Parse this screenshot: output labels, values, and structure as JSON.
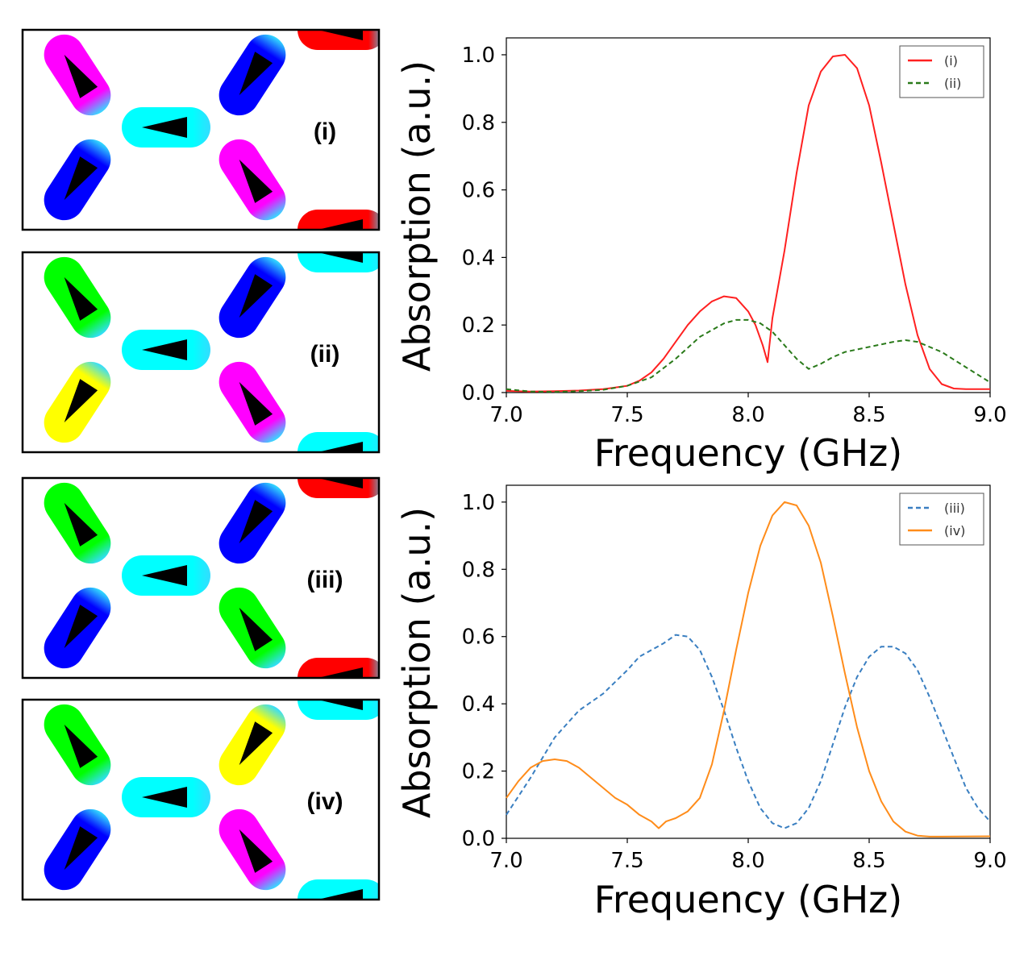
{
  "panels": [
    {
      "label": "(i)",
      "colors": [
        "#ff00ff",
        "#0000ff",
        "#00ffff",
        "#0000ff",
        "#ff00ff",
        "#ff0000",
        "#ff0000"
      ]
    },
    {
      "label": "(ii)",
      "colors": [
        "#00ff00",
        "#ffff00",
        "#00ffff",
        "#0000ff",
        "#ff00ff",
        "#00ffff",
        "#00ffff"
      ]
    },
    {
      "label": "(iii)",
      "colors": [
        "#00ff00",
        "#0000ff",
        "#00ffff",
        "#0000ff",
        "#00ff00",
        "#ff0000",
        "#ff0000"
      ]
    },
    {
      "label": "(iv)",
      "colors": [
        "#00ff00",
        "#0000ff",
        "#00ffff",
        "#ffff00",
        "#ff00ff",
        "#00ffff",
        "#00ffff"
      ]
    }
  ],
  "chart_data": [
    {
      "type": "line",
      "xlabel": "Frequency (GHz)",
      "ylabel": "Absorption (a.u.)",
      "xlim": [
        7.0,
        9.0
      ],
      "ylim": [
        0.0,
        1.05
      ],
      "xticks": [
        "7.0",
        "7.5",
        "8.0",
        "8.5",
        "9.0"
      ],
      "yticks": [
        "0.0",
        "0.2",
        "0.4",
        "0.6",
        "0.8",
        "1.0"
      ],
      "legend_position": "top-right",
      "series": [
        {
          "name": "(i)",
          "color": "#ff2020",
          "dash": "solid",
          "x": [
            7.0,
            7.1,
            7.2,
            7.3,
            7.4,
            7.5,
            7.55,
            7.6,
            7.65,
            7.7,
            7.75,
            7.8,
            7.85,
            7.9,
            7.95,
            8.0,
            8.03,
            8.06,
            8.08,
            8.1,
            8.15,
            8.2,
            8.25,
            8.3,
            8.35,
            8.4,
            8.45,
            8.5,
            8.55,
            8.6,
            8.65,
            8.7,
            8.75,
            8.8,
            8.85,
            8.9,
            9.0
          ],
          "y": [
            0.005,
            0.003,
            0.004,
            0.006,
            0.01,
            0.02,
            0.035,
            0.06,
            0.1,
            0.15,
            0.2,
            0.24,
            0.27,
            0.285,
            0.28,
            0.24,
            0.2,
            0.14,
            0.09,
            0.22,
            0.42,
            0.65,
            0.85,
            0.95,
            0.995,
            1.0,
            0.96,
            0.85,
            0.68,
            0.5,
            0.32,
            0.17,
            0.07,
            0.025,
            0.012,
            0.01,
            0.01
          ]
        },
        {
          "name": "(ii)",
          "color": "#2a7a1a",
          "dash": "dashed",
          "x": [
            7.0,
            7.1,
            7.2,
            7.3,
            7.4,
            7.5,
            7.6,
            7.7,
            7.8,
            7.9,
            7.95,
            8.0,
            8.05,
            8.1,
            8.15,
            8.2,
            8.25,
            8.3,
            8.35,
            8.4,
            8.5,
            8.6,
            8.65,
            8.7,
            8.8,
            8.9,
            9.0
          ],
          "y": [
            0.01,
            0.003,
            0.002,
            0.004,
            0.008,
            0.02,
            0.045,
            0.1,
            0.165,
            0.205,
            0.215,
            0.215,
            0.205,
            0.18,
            0.14,
            0.1,
            0.07,
            0.085,
            0.105,
            0.12,
            0.135,
            0.15,
            0.155,
            0.15,
            0.12,
            0.075,
            0.03
          ]
        }
      ]
    },
    {
      "type": "line",
      "xlabel": "Frequency (GHz)",
      "ylabel": "Absorption (a.u.)",
      "xlim": [
        7.0,
        9.0
      ],
      "ylim": [
        0.0,
        1.05
      ],
      "xticks": [
        "7.0",
        "7.5",
        "8.0",
        "8.5",
        "9.0"
      ],
      "yticks": [
        "0.0",
        "0.2",
        "0.4",
        "0.6",
        "0.8",
        "1.0"
      ],
      "legend_position": "top-right",
      "series": [
        {
          "name": "(iii)",
          "color": "#3a7fc1",
          "dash": "dashed",
          "x": [
            7.0,
            7.1,
            7.2,
            7.3,
            7.4,
            7.5,
            7.55,
            7.6,
            7.65,
            7.7,
            7.75,
            7.8,
            7.85,
            7.9,
            7.95,
            8.0,
            8.05,
            8.1,
            8.15,
            8.2,
            8.25,
            8.3,
            8.35,
            8.4,
            8.45,
            8.5,
            8.55,
            8.6,
            8.65,
            8.7,
            8.75,
            8.8,
            8.85,
            8.9,
            8.95,
            9.0
          ],
          "y": [
            0.07,
            0.18,
            0.3,
            0.38,
            0.43,
            0.5,
            0.54,
            0.56,
            0.58,
            0.605,
            0.6,
            0.56,
            0.48,
            0.38,
            0.27,
            0.17,
            0.09,
            0.045,
            0.03,
            0.045,
            0.09,
            0.17,
            0.28,
            0.39,
            0.48,
            0.54,
            0.57,
            0.57,
            0.55,
            0.5,
            0.42,
            0.33,
            0.24,
            0.15,
            0.09,
            0.05
          ]
        },
        {
          "name": "(iv)",
          "color": "#ff8c1a",
          "dash": "solid",
          "x": [
            7.0,
            7.05,
            7.1,
            7.15,
            7.2,
            7.25,
            7.3,
            7.35,
            7.4,
            7.45,
            7.5,
            7.55,
            7.6,
            7.63,
            7.66,
            7.7,
            7.75,
            7.8,
            7.85,
            7.9,
            7.95,
            8.0,
            8.05,
            8.1,
            8.15,
            8.2,
            8.25,
            8.3,
            8.35,
            8.4,
            8.45,
            8.5,
            8.55,
            8.6,
            8.65,
            8.7,
            8.75,
            8.8,
            9.0
          ],
          "y": [
            0.12,
            0.17,
            0.21,
            0.23,
            0.235,
            0.23,
            0.21,
            0.18,
            0.15,
            0.12,
            0.1,
            0.07,
            0.05,
            0.03,
            0.05,
            0.06,
            0.08,
            0.12,
            0.22,
            0.38,
            0.56,
            0.73,
            0.87,
            0.96,
            1.0,
            0.99,
            0.93,
            0.82,
            0.66,
            0.49,
            0.33,
            0.2,
            0.11,
            0.05,
            0.02,
            0.008,
            0.005,
            0.005,
            0.006
          ]
        }
      ]
    }
  ]
}
